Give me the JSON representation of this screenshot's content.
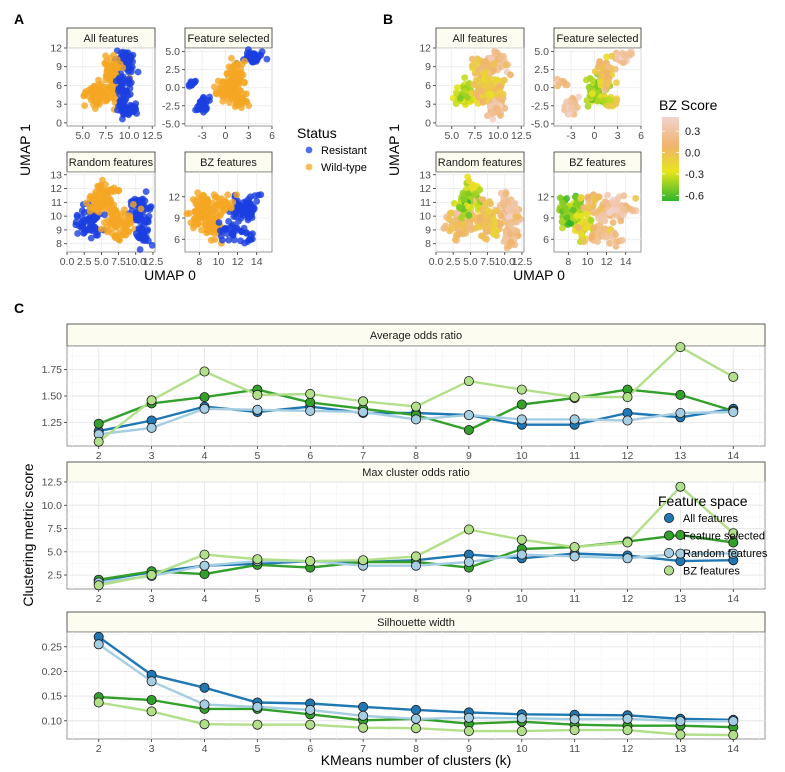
{
  "panel_labels": {
    "a": "A",
    "b": "B",
    "c": "C"
  },
  "chart_data": [
    {
      "id": "A",
      "type": "scatter",
      "title": "",
      "xlabel": "UMAP 0",
      "ylabel": "UMAP 1",
      "legend": {
        "title": "Status",
        "entries": [
          {
            "label": "Resistant",
            "color": "#1a3fe0"
          },
          {
            "label": "Wild-type",
            "color": "#f5a623"
          }
        ],
        "placement": "right"
      },
      "facets": [
        {
          "title": "All features",
          "xticks": [
            "5.0",
            "7.5",
            "10.0",
            "12.5"
          ],
          "xtick_values": [
            5,
            7.5,
            10,
            12.5
          ],
          "xlim": [
            3.3,
            12.8
          ],
          "yticks": [
            "0",
            "3",
            "6",
            "9",
            "12"
          ],
          "ytick_values": [
            0,
            3,
            6,
            9,
            12
          ],
          "ylim": [
            -0.5,
            12
          ]
        },
        {
          "title": "Feature selected",
          "xticks": [
            "-3",
            "0",
            "3",
            "6"
          ],
          "xtick_values": [
            -3,
            0,
            3,
            6
          ],
          "xlim": [
            -5.2,
            6
          ],
          "yticks": [
            "-5.0",
            "-2.5",
            "0.0",
            "2.5",
            "5.0"
          ],
          "ytick_values": [
            -5,
            -2.5,
            0,
            2.5,
            5
          ],
          "ylim": [
            -5.3,
            5.5
          ]
        },
        {
          "title": "Random features",
          "xticks": [
            "0.0",
            "2.5",
            "5.0",
            "7.5",
            "10.0",
            "12.5"
          ],
          "xtick_values": [
            0,
            2.5,
            5,
            7.5,
            10,
            12.5
          ],
          "xlim": [
            0,
            12.8
          ],
          "yticks": [
            "8",
            "9",
            "10",
            "11",
            "12",
            "13"
          ],
          "ytick_values": [
            8,
            9,
            10,
            11,
            12,
            13
          ],
          "ylim": [
            7.4,
            13.2
          ]
        },
        {
          "title": "BZ features",
          "xticks": [
            "8",
            "10",
            "12",
            "14"
          ],
          "xtick_values": [
            8,
            10,
            12,
            14
          ],
          "xlim": [
            6.5,
            15.6
          ],
          "yticks": [
            "6",
            "9",
            "12"
          ],
          "ytick_values": [
            6,
            9,
            12
          ],
          "ylim": [
            4.2,
            15.5
          ]
        }
      ]
    },
    {
      "id": "B",
      "type": "scatter",
      "title": "",
      "xlabel": "UMAP 0",
      "ylabel": "UMAP 1",
      "colorbar": {
        "title": "BZ Score",
        "ticks": [
          "0.3",
          "0.0",
          "-0.3",
          "-0.6"
        ],
        "tick_values": [
          0.3,
          0.0,
          -0.3,
          -0.6
        ],
        "range": [
          -0.68,
          0.5
        ],
        "colors": [
          "#2db52a",
          "#e7e51c",
          "#f0b36a",
          "#f2d3cf"
        ],
        "placement": "right"
      },
      "facets": [
        {
          "title": "All features",
          "xticks": [
            "5.0",
            "7.5",
            "10.0",
            "12.5"
          ],
          "xtick_values": [
            5,
            7.5,
            10,
            12.5
          ],
          "xlim": [
            3.3,
            12.8
          ],
          "yticks": [
            "0",
            "3",
            "6",
            "9",
            "12"
          ],
          "ytick_values": [
            0,
            3,
            6,
            9,
            12
          ],
          "ylim": [
            -0.5,
            12
          ]
        },
        {
          "title": "Feature selected",
          "xticks": [
            "-3",
            "0",
            "3",
            "6"
          ],
          "xtick_values": [
            -3,
            0,
            3,
            6
          ],
          "xlim": [
            -5.2,
            6
          ],
          "yticks": [
            "-5.0",
            "-2.5",
            "0.0",
            "2.5",
            "5.0"
          ],
          "ytick_values": [
            -5,
            -2.5,
            0,
            2.5,
            5
          ],
          "ylim": [
            -5.3,
            5.5
          ]
        },
        {
          "title": "Random features",
          "xticks": [
            "0.0",
            "2.5",
            "5.0",
            "7.5",
            "10.0",
            "12.5"
          ],
          "xtick_values": [
            0,
            2.5,
            5,
            7.5,
            10,
            12.5
          ],
          "xlim": [
            0,
            12.8
          ],
          "yticks": [
            "8",
            "9",
            "10",
            "11",
            "12",
            "13"
          ],
          "ytick_values": [
            8,
            9,
            10,
            11,
            12,
            13
          ],
          "ylim": [
            7.4,
            13.2
          ]
        },
        {
          "title": "BZ features",
          "xticks": [
            "8",
            "10",
            "12",
            "14"
          ],
          "xtick_values": [
            8,
            10,
            12,
            14
          ],
          "xlim": [
            6.5,
            15.6
          ],
          "yticks": [
            "6",
            "9",
            "12"
          ],
          "ytick_values": [
            6,
            9,
            12
          ],
          "ylim": [
            4.2,
            15.5
          ]
        }
      ]
    },
    {
      "id": "C",
      "type": "line",
      "xlabel": "KMeans number of clusters (k)",
      "ylabel": "Clustering metric score",
      "x": [
        2,
        3,
        4,
        5,
        6,
        7,
        8,
        9,
        10,
        11,
        12,
        13,
        14
      ],
      "xticks": [
        "2",
        "3",
        "4",
        "5",
        "6",
        "7",
        "8",
        "9",
        "10",
        "11",
        "12",
        "13",
        "14"
      ],
      "legend": {
        "title": "Feature space",
        "placement": "right"
      },
      "series_meta": [
        {
          "name": "All features",
          "color": "#1f78b4"
        },
        {
          "name": "Feature selected",
          "color": "#33a02c"
        },
        {
          "name": "Random features",
          "color": "#a6cee3"
        },
        {
          "name": "BZ features",
          "color": "#b2df8a"
        }
      ],
      "facets": [
        {
          "title": "Average odds ratio",
          "ylim": [
            1.03,
            1.97
          ],
          "yticks": [
            "1.25",
            "1.50",
            "1.75"
          ],
          "ytick_values": [
            1.25,
            1.5,
            1.75
          ],
          "series": [
            {
              "name": "All features",
              "values": [
                1.17,
                1.27,
                1.4,
                1.35,
                1.4,
                1.34,
                1.34,
                1.32,
                1.23,
                1.23,
                1.34,
                1.3,
                1.38
              ]
            },
            {
              "name": "Feature selected",
              "values": [
                1.24,
                1.43,
                1.49,
                1.56,
                1.44,
                1.38,
                1.32,
                1.18,
                1.42,
                1.48,
                1.56,
                1.51,
                1.36
              ]
            },
            {
              "name": "Random features",
              "values": [
                1.14,
                1.2,
                1.38,
                1.37,
                1.36,
                1.35,
                1.28,
                1.32,
                1.28,
                1.28,
                1.27,
                1.34,
                1.35
              ]
            },
            {
              "name": "BZ features",
              "values": [
                1.07,
                1.46,
                1.73,
                1.51,
                1.52,
                1.45,
                1.4,
                1.64,
                1.56,
                1.49,
                1.49,
                1.96,
                1.68
              ]
            }
          ]
        },
        {
          "title": "Max cluster odds ratio",
          "ylim": [
            1.0,
            12.5
          ],
          "yticks": [
            "2.5",
            "5.0",
            "7.5",
            "10.0",
            "12.5"
          ],
          "ytick_values": [
            2.5,
            5.0,
            7.5,
            10.0,
            12.5
          ],
          "series": [
            {
              "name": "All features",
              "values": [
                1.9,
                2.8,
                3.5,
                3.7,
                4.0,
                3.9,
                4.1,
                4.7,
                4.3,
                4.8,
                4.6,
                4.0,
                4.1
              ]
            },
            {
              "name": "Feature selected",
              "values": [
                2.0,
                2.9,
                2.6,
                3.6,
                3.3,
                3.9,
                3.9,
                3.3,
                5.3,
                5.5,
                6.1,
                6.8,
                6.0
              ]
            },
            {
              "name": "Random features",
              "values": [
                1.7,
                2.4,
                3.5,
                4.0,
                4.0,
                3.5,
                3.5,
                3.9,
                4.7,
                4.5,
                4.3,
                4.8,
                4.8
              ]
            },
            {
              "name": "BZ features",
              "values": [
                1.4,
                2.5,
                4.7,
                4.2,
                4.0,
                4.1,
                4.5,
                7.4,
                6.3,
                5.5,
                6.0,
                12.0,
                7.0
              ]
            }
          ]
        },
        {
          "title": "Silhouette width",
          "ylim": [
            0.063,
            0.28
          ],
          "yticks": [
            "0.10",
            "0.15",
            "0.20",
            "0.25"
          ],
          "ytick_values": [
            0.1,
            0.15,
            0.2,
            0.25
          ],
          "series": [
            {
              "name": "All features",
              "values": [
                0.27,
                0.193,
                0.167,
                0.137,
                0.135,
                0.128,
                0.122,
                0.117,
                0.113,
                0.112,
                0.111,
                0.104,
                0.102
              ]
            },
            {
              "name": "Feature selected",
              "values": [
                0.148,
                0.142,
                0.124,
                0.124,
                0.113,
                0.101,
                0.104,
                0.094,
                0.098,
                0.092,
                0.09,
                0.09,
                0.087
              ]
            },
            {
              "name": "Random features",
              "values": [
                0.255,
                0.18,
                0.133,
                0.128,
                0.122,
                0.11,
                0.104,
                0.106,
                0.105,
                0.103,
                0.104,
                0.099,
                0.099
              ]
            },
            {
              "name": "BZ features",
              "values": [
                0.137,
                0.119,
                0.093,
                0.092,
                0.092,
                0.086,
                0.085,
                0.079,
                0.079,
                0.081,
                0.081,
                0.072,
                0.071
              ]
            }
          ]
        }
      ]
    }
  ]
}
